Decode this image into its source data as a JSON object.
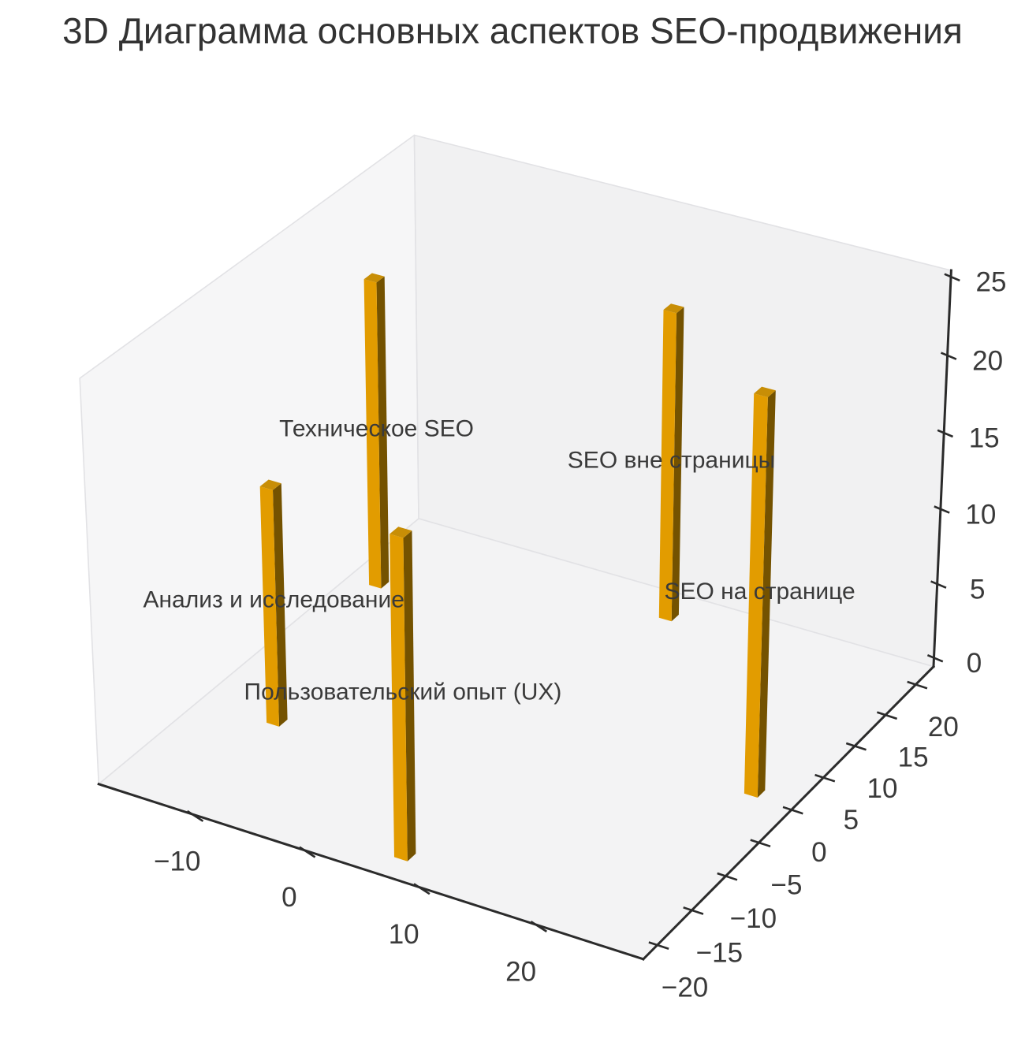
{
  "title": "3D Диаграмма основных аспектов SEO-продвижения",
  "chart_data": {
    "type": "bar",
    "subtype": "bar3d",
    "title": "3D Диаграмма основных аспектов SEO-продвижения",
    "series": [
      {
        "name": "Техническое SEO",
        "x": -15.8,
        "y": 12.8,
        "value": 20
      },
      {
        "name": "Анализ и исследование",
        "x": -11.6,
        "y": -8.2,
        "value": 15
      },
      {
        "name": "Пользовательский опыт (UX)",
        "x": 6.9,
        "y": -19.0,
        "value": 20
      },
      {
        "name": "SEO вне страницы",
        "x": 7.1,
        "y": 19.6,
        "value": 20
      },
      {
        "name": "SEO на странице",
        "x": 25.4,
        "y": 0.8,
        "value": 25
      }
    ],
    "bar_size": {
      "dx": 1.15,
      "dy": 1.15
    },
    "label_position": "mid-height",
    "axes": {
      "x": {
        "lim": [
          -18.5,
          29.0
        ],
        "ticks": [
          -10,
          0,
          10,
          20
        ],
        "tick_labels": [
          "−10",
          "0",
          "10",
          "20"
        ]
      },
      "y": {
        "lim": [
          -22.0,
          23.0
        ],
        "ticks": [
          -20,
          -15,
          -10,
          -5,
          0,
          5,
          10,
          15,
          20
        ],
        "tick_labels": [
          "−20",
          "−15",
          "−10",
          "−5",
          "0",
          "5",
          "10",
          "15",
          "20"
        ]
      },
      "z": {
        "lim": [
          -0.6,
          25.4
        ],
        "ticks": [
          0,
          5,
          10,
          15,
          20,
          25
        ],
        "tick_labels": [
          "0",
          "5",
          "10",
          "15",
          "20",
          "25"
        ]
      }
    },
    "view": {
      "elev": 30,
      "azim": -60,
      "projection": "persp",
      "dist": 10
    },
    "grid": false,
    "legend": false,
    "colors": {
      "bar_top": "#C88E06",
      "bar_front": "#E29C00",
      "bar_side": "#745200",
      "pane_left": "#F6F6F7",
      "pane_right": "#F1F1F2",
      "pane_floor": "#F3F3F4",
      "pane_edge": "#E2E2E5",
      "axis_line": "#2B2B2B",
      "tick_label": "#3A3A3A",
      "bar_label": "#3A3A3A"
    },
    "font_px": {
      "title": 46,
      "tick": 35,
      "bar_label": 30
    }
  }
}
